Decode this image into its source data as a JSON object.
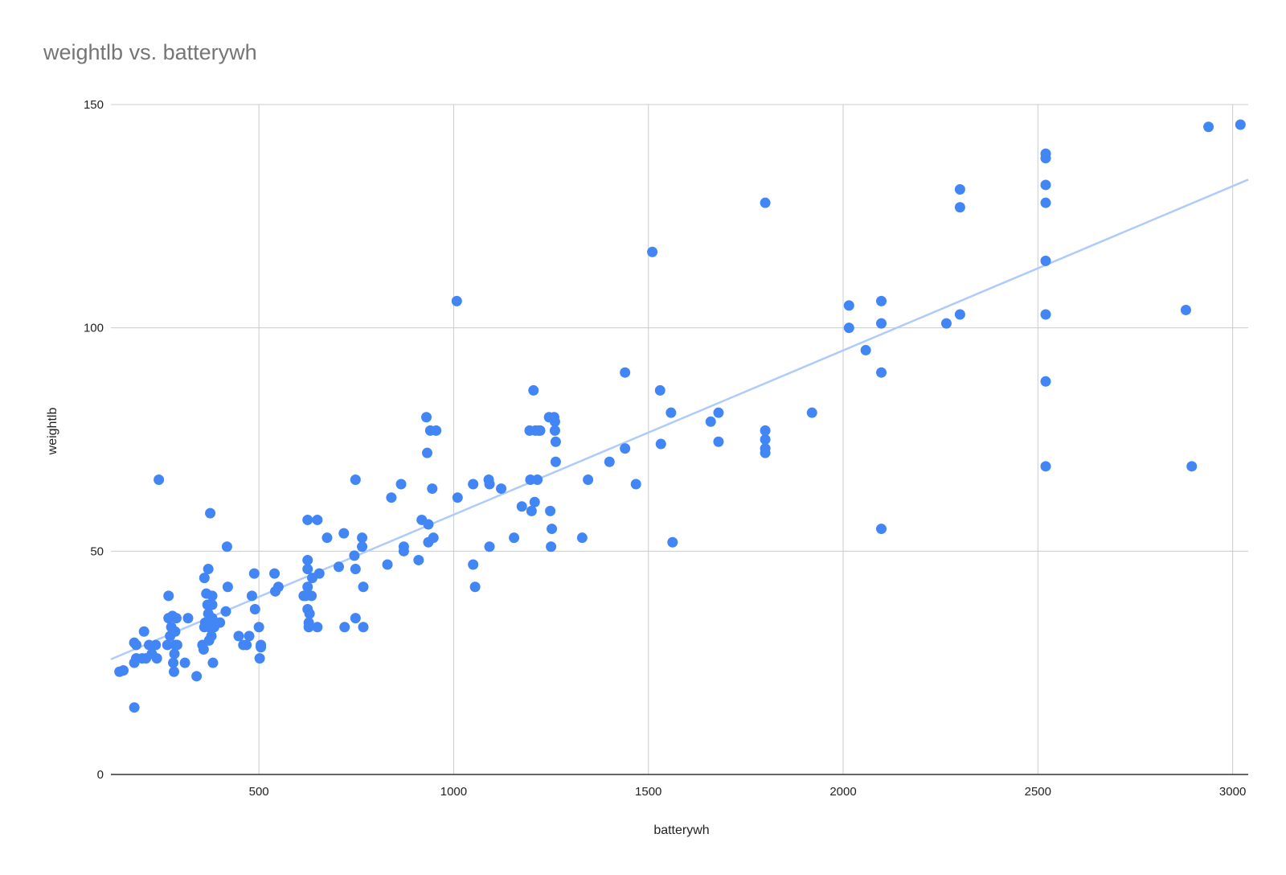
{
  "chart_data": {
    "type": "scatter",
    "title": "weightlb vs. batterywh",
    "xlabel": "batterywh",
    "ylabel": "weightlb",
    "xlim": [
      120,
      3040
    ],
    "ylim": [
      0,
      150
    ],
    "x_ticks": [
      500,
      1000,
      1500,
      2000,
      2500,
      3000
    ],
    "y_ticks": [
      0,
      50,
      100,
      150
    ],
    "grid": true,
    "legend": "none",
    "colors": {
      "points": "#4285f4",
      "trendline": "#aecbfa",
      "grid": "#cccccc",
      "axis": "#333333"
    },
    "trendline": {
      "type": "linear",
      "x": [
        120,
        3040
      ],
      "y": [
        25.8,
        133.2
      ]
    },
    "series": [
      {
        "points": [
          [
            142,
            23
          ],
          [
            152,
            23.3
          ],
          [
            180,
            15
          ],
          [
            180,
            29.5
          ],
          [
            185,
            29
          ],
          [
            180,
            25
          ],
          [
            185,
            26
          ],
          [
            200,
            26
          ],
          [
            205,
            32
          ],
          [
            210,
            26
          ],
          [
            218,
            29
          ],
          [
            225,
            27
          ],
          [
            235,
            29
          ],
          [
            238,
            26
          ],
          [
            243,
            66
          ],
          [
            265,
            29
          ],
          [
            268,
            35
          ],
          [
            268,
            40
          ],
          [
            272,
            31
          ],
          [
            275,
            33
          ],
          [
            278,
            35.5
          ],
          [
            280,
            25
          ],
          [
            282,
            23
          ],
          [
            283,
            27
          ],
          [
            285,
            29
          ],
          [
            285,
            32
          ],
          [
            288,
            35
          ],
          [
            290,
            29
          ],
          [
            310,
            25
          ],
          [
            318,
            35
          ],
          [
            340,
            22
          ],
          [
            355,
            29
          ],
          [
            358,
            28
          ],
          [
            360,
            33
          ],
          [
            360,
            44
          ],
          [
            362,
            34
          ],
          [
            365,
            40.5
          ],
          [
            368,
            38
          ],
          [
            370,
            46
          ],
          [
            370,
            36
          ],
          [
            372,
            33
          ],
          [
            372,
            30
          ],
          [
            375,
            58.5
          ],
          [
            378,
            31
          ],
          [
            380,
            35
          ],
          [
            380,
            40
          ],
          [
            380,
            38
          ],
          [
            382,
            25
          ],
          [
            385,
            33
          ],
          [
            400,
            34
          ],
          [
            415,
            36.5
          ],
          [
            418,
            51
          ],
          [
            420,
            42
          ],
          [
            448,
            31
          ],
          [
            460,
            29
          ],
          [
            468,
            29
          ],
          [
            475,
            31
          ],
          [
            482,
            40
          ],
          [
            488,
            45
          ],
          [
            490,
            37
          ],
          [
            500,
            33
          ],
          [
            502,
            26
          ],
          [
            505,
            29
          ],
          [
            505,
            28.5
          ],
          [
            540,
            45
          ],
          [
            542,
            41
          ],
          [
            550,
            42
          ],
          [
            615,
            40
          ],
          [
            620,
            40
          ],
          [
            625,
            57
          ],
          [
            625,
            48
          ],
          [
            625,
            46
          ],
          [
            625,
            42
          ],
          [
            625,
            37
          ],
          [
            628,
            34
          ],
          [
            628,
            33
          ],
          [
            630,
            36
          ],
          [
            635,
            40
          ],
          [
            637,
            44
          ],
          [
            650,
            57
          ],
          [
            650,
            33
          ],
          [
            655,
            45
          ],
          [
            675,
            53
          ],
          [
            705,
            46.5
          ],
          [
            718,
            54
          ],
          [
            720,
            33
          ],
          [
            745,
            49
          ],
          [
            748,
            66
          ],
          [
            748,
            46
          ],
          [
            748,
            35
          ],
          [
            765,
            53
          ],
          [
            765,
            51
          ],
          [
            768,
            42
          ],
          [
            768,
            33
          ],
          [
            830,
            47
          ],
          [
            840,
            62
          ],
          [
            865,
            65
          ],
          [
            872,
            51
          ],
          [
            872,
            50
          ],
          [
            910,
            48
          ],
          [
            918,
            57
          ],
          [
            930,
            80
          ],
          [
            932,
            72
          ],
          [
            935,
            56
          ],
          [
            935,
            52
          ],
          [
            940,
            77
          ],
          [
            945,
            64
          ],
          [
            948,
            53
          ],
          [
            955,
            77
          ],
          [
            1008,
            106
          ],
          [
            1010,
            62
          ],
          [
            1050,
            65
          ],
          [
            1050,
            47
          ],
          [
            1055,
            42
          ],
          [
            1090,
            66
          ],
          [
            1092,
            65
          ],
          [
            1092,
            51
          ],
          [
            1122,
            64
          ],
          [
            1155,
            53
          ],
          [
            1175,
            60
          ],
          [
            1195,
            77
          ],
          [
            1197,
            66
          ],
          [
            1200,
            59
          ],
          [
            1205,
            86
          ],
          [
            1208,
            61
          ],
          [
            1210,
            77
          ],
          [
            1215,
            66
          ],
          [
            1218,
            77
          ],
          [
            1222,
            77
          ],
          [
            1245,
            80
          ],
          [
            1248,
            59
          ],
          [
            1250,
            51
          ],
          [
            1252,
            55
          ],
          [
            1258,
            80
          ],
          [
            1260,
            79
          ],
          [
            1260,
            77
          ],
          [
            1262,
            74.5
          ],
          [
            1262,
            70
          ],
          [
            1330,
            53
          ],
          [
            1345,
            66
          ],
          [
            1400,
            70
          ],
          [
            1440,
            90
          ],
          [
            1440,
            73
          ],
          [
            1468,
            65
          ],
          [
            1510,
            117
          ],
          [
            1530,
            86
          ],
          [
            1532,
            74
          ],
          [
            1558,
            81
          ],
          [
            1562,
            52
          ],
          [
            1660,
            79
          ],
          [
            1680,
            81
          ],
          [
            1680,
            74.5
          ],
          [
            1800,
            128
          ],
          [
            1800,
            77
          ],
          [
            1800,
            75
          ],
          [
            1800,
            73
          ],
          [
            1800,
            72
          ],
          [
            1920,
            81
          ],
          [
            2015,
            105
          ],
          [
            2015,
            100
          ],
          [
            2058,
            95
          ],
          [
            2098,
            106
          ],
          [
            2098,
            101
          ],
          [
            2098,
            90
          ],
          [
            2098,
            55
          ],
          [
            2265,
            101
          ],
          [
            2300,
            131
          ],
          [
            2300,
            127
          ],
          [
            2300,
            103
          ],
          [
            2520,
            139
          ],
          [
            2520,
            138
          ],
          [
            2520,
            132
          ],
          [
            2520,
            128
          ],
          [
            2520,
            115
          ],
          [
            2520,
            103
          ],
          [
            2520,
            88
          ],
          [
            2520,
            69
          ],
          [
            2880,
            104
          ],
          [
            2895,
            69
          ],
          [
            2938,
            145
          ],
          [
            3020,
            145.5
          ]
        ]
      }
    ]
  }
}
